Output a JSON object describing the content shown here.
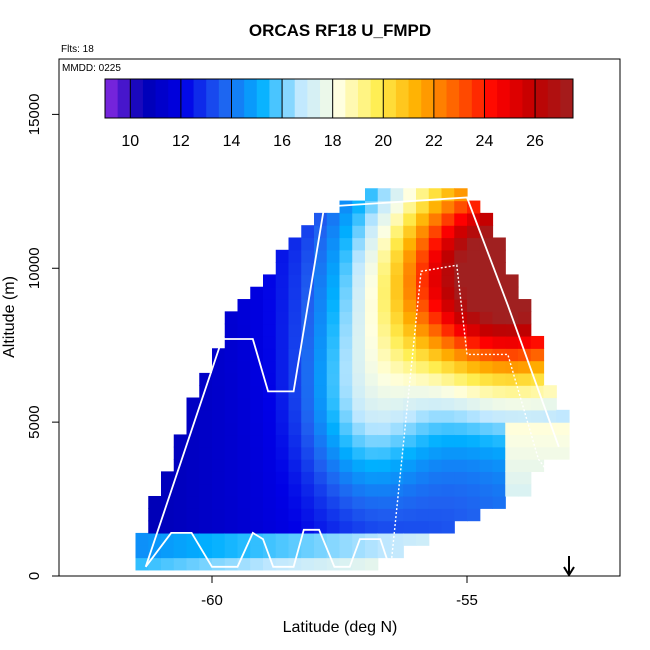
{
  "chart_data": {
    "type": "heatmap",
    "title": "ORCAS RF18 U_FMPD",
    "flights_label": "Flts: 18",
    "date_label": "MMDD: 0225",
    "xlabel": "Latitude (deg N)",
    "ylabel": "Altitude (m)",
    "xlim": [
      -63.0,
      -52.0
    ],
    "ylim": [
      0,
      16800
    ],
    "x_ticks": [
      -60,
      -55
    ],
    "y_ticks": [
      0,
      5000,
      10000,
      15000
    ],
    "colorbar": {
      "vmin": 9.0,
      "vmax": 27.5,
      "ticks": [
        10,
        12,
        14,
        16,
        18,
        20,
        22,
        24,
        26
      ],
      "colors": [
        "#8a2be2",
        "#0000b4",
        "#0000e6",
        "#2060f0",
        "#00b0ff",
        "#c0e8ff",
        "#ffffe0",
        "#ffee50",
        "#ffb000",
        "#ff6000",
        "#ff0000",
        "#c00000",
        "#a02020"
      ]
    },
    "field": {
      "x_start": -61.5,
      "x_end": -53.2,
      "cell_width": 0.25,
      "z_start": 200,
      "z_end": 12500,
      "cell_height": 400,
      "lower_boundary": [
        [
          -61.5,
          200
        ],
        [
          -57.0,
          200
        ],
        [
          -56.2,
          900
        ],
        [
          -54.0,
          2500
        ],
        [
          -53.2,
          4000
        ]
      ],
      "upper_boundary": [
        [
          -61.5,
          600
        ],
        [
          -61.0,
          3000
        ],
        [
          -60.2,
          6500
        ],
        [
          -59.6,
          8500
        ],
        [
          -58.6,
          10500
        ],
        [
          -57.8,
          11800
        ],
        [
          -56.8,
          12500
        ],
        [
          -55.0,
          12500
        ],
        [
          -54.5,
          11500
        ],
        [
          -53.8,
          8500
        ],
        [
          -53.2,
          5500
        ]
      ]
    },
    "flight_track": [
      [
        -61.3,
        300
      ],
      [
        -60.8,
        1400
      ],
      [
        -60.4,
        1400
      ],
      [
        -60.0,
        300
      ],
      [
        -59.5,
        300
      ],
      [
        -59.2,
        1400
      ],
      [
        -59.0,
        1200
      ],
      [
        -58.8,
        300
      ],
      [
        -58.4,
        300
      ],
      [
        -58.2,
        1500
      ],
      [
        -57.9,
        1500
      ],
      [
        -57.6,
        300
      ],
      [
        -57.3,
        300
      ],
      [
        -57.1,
        1200
      ],
      [
        -56.7,
        1200
      ],
      [
        -56.5,
        200
      ]
    ],
    "profile_track": [
      [
        -61.3,
        300
      ],
      [
        -59.8,
        7700
      ],
      [
        -59.2,
        7700
      ],
      [
        -58.9,
        6000
      ],
      [
        -58.4,
        6000
      ],
      [
        -57.8,
        12000
      ],
      [
        -55.0,
        12300
      ],
      [
        -54.2,
        8800
      ],
      [
        -53.2,
        4200
      ]
    ],
    "dotted_track": [
      [
        -56.5,
        200
      ],
      [
        -55.9,
        9900
      ],
      [
        -55.2,
        10100
      ],
      [
        -55.0,
        7200
      ],
      [
        -54.2,
        7200
      ],
      [
        -53.6,
        3800
      ],
      [
        -53.2,
        2900
      ]
    ],
    "arrow_x": -53.0,
    "arrow_direction": "down"
  }
}
